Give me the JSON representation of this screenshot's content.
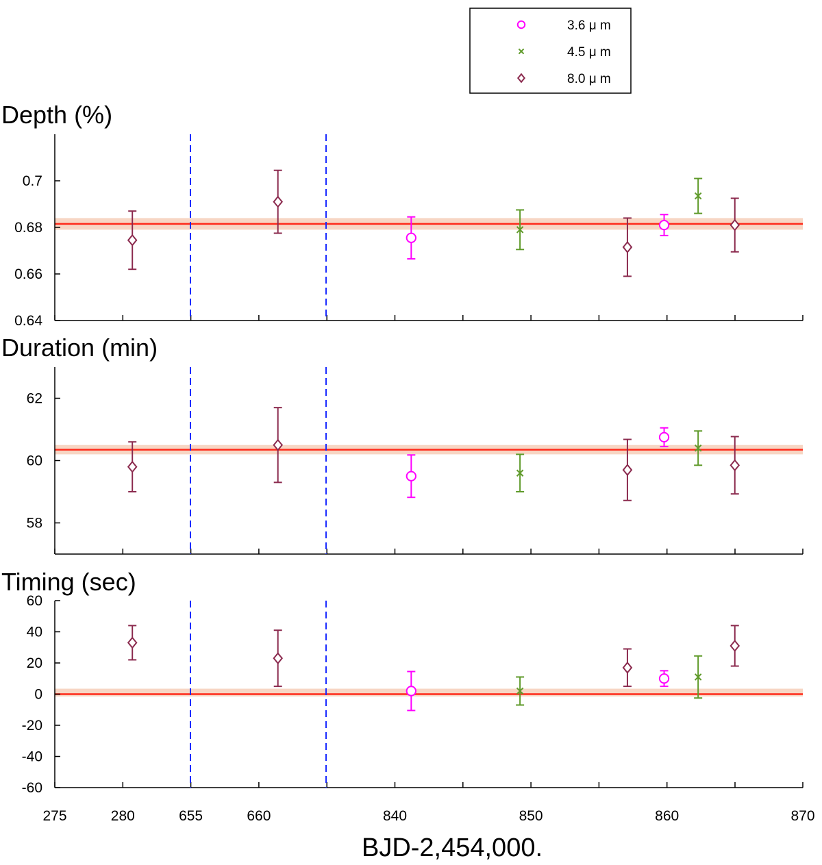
{
  "chart_data": {
    "type": "scatter",
    "xlabel": "BJD-2,454,000.",
    "x_tick_labels": [
      "275",
      "280",
      "655",
      "660",
      "",
      "840",
      "",
      "850",
      "",
      "860",
      "",
      "870"
    ],
    "x_breaks_note_positions": [
      655,
      665
    ],
    "colors": {
      "3.6": "#ff00ff",
      "4.5": "#5f9a2a",
      "8.0": "#8b2a4e",
      "mean_line": "#ff2a1a",
      "mean_band": "#f7d6c4",
      "break_line": "#1a2bff"
    },
    "legend": [
      {
        "series": "3.6",
        "marker": "circle",
        "label": "3.6 μ m"
      },
      {
        "series": "4.5",
        "marker": "x",
        "label": "4.5 μ m"
      },
      {
        "series": "8.0",
        "marker": "diamond",
        "label": "8.0 μ m"
      }
    ],
    "panels": [
      {
        "title": "Depth (%)",
        "ylim": [
          0.64,
          0.72
        ],
        "yticks": [
          0.64,
          0.66,
          0.68,
          0.7
        ],
        "ytick_labels": [
          "0.64",
          "0.66",
          "0.68",
          "0.7"
        ],
        "mean": 0.6815,
        "band": [
          0.679,
          0.684
        ],
        "points": [
          {
            "x_axis": 280.7,
            "series": "8.0",
            "y": 0.6745,
            "err": 0.0125
          },
          {
            "x_axis": 661.4,
            "series": "8.0",
            "y": 0.691,
            "err": 0.0135
          },
          {
            "x_axis": 841.2,
            "series": "3.6",
            "y": 0.6755,
            "err": 0.009
          },
          {
            "x_axis": 849.2,
            "series": "4.5",
            "y": 0.679,
            "err": 0.0085
          },
          {
            "x_axis": 857.1,
            "series": "8.0",
            "y": 0.6715,
            "err": 0.0125
          },
          {
            "x_axis": 859.8,
            "series": "3.6",
            "y": 0.681,
            "err": 0.0045
          },
          {
            "x_axis": 862.3,
            "series": "4.5",
            "y": 0.6935,
            "err": 0.0075
          },
          {
            "x_axis": 865.0,
            "series": "8.0",
            "y": 0.681,
            "err": 0.0115
          }
        ]
      },
      {
        "title": "Duration (min)",
        "ylim": [
          57,
          63
        ],
        "yticks": [
          58,
          60,
          62
        ],
        "ytick_labels": [
          "58",
          "60",
          "62"
        ],
        "mean": 60.35,
        "band": [
          60.2,
          60.5
        ],
        "points": [
          {
            "x_axis": 280.7,
            "series": "8.0",
            "y": 59.8,
            "err": 0.8
          },
          {
            "x_axis": 661.4,
            "series": "8.0",
            "y": 60.5,
            "err": 1.2
          },
          {
            "x_axis": 841.2,
            "series": "3.6",
            "y": 59.5,
            "err": 0.68
          },
          {
            "x_axis": 849.2,
            "series": "4.5",
            "y": 59.6,
            "err": 0.6
          },
          {
            "x_axis": 857.1,
            "series": "8.0",
            "y": 59.7,
            "err": 0.98
          },
          {
            "x_axis": 859.8,
            "series": "3.6",
            "y": 60.75,
            "err": 0.3
          },
          {
            "x_axis": 862.3,
            "series": "4.5",
            "y": 60.4,
            "err": 0.55
          },
          {
            "x_axis": 865.0,
            "series": "8.0",
            "y": 59.85,
            "err": 0.92
          }
        ]
      },
      {
        "title": "Timing (sec)",
        "ylim": [
          -60,
          60
        ],
        "yticks": [
          -60,
          -40,
          -20,
          0,
          20,
          40,
          60
        ],
        "ytick_labels": [
          "-60",
          "-40",
          "-20",
          "0",
          "20",
          "40",
          "60"
        ],
        "mean": 0,
        "band": [
          -1.5,
          3.5
        ],
        "points": [
          {
            "x_axis": 280.7,
            "series": "8.0",
            "y": 33,
            "err": 11
          },
          {
            "x_axis": 661.4,
            "series": "8.0",
            "y": 23,
            "err": 18
          },
          {
            "x_axis": 841.2,
            "series": "3.6",
            "y": 2,
            "err": 12.5
          },
          {
            "x_axis": 849.2,
            "series": "4.5",
            "y": 2,
            "err": 9
          },
          {
            "x_axis": 857.1,
            "series": "8.0",
            "y": 17,
            "err": 12
          },
          {
            "x_axis": 859.8,
            "series": "3.6",
            "y": 10,
            "err": 5
          },
          {
            "x_axis": 862.3,
            "series": "4.5",
            "y": 11,
            "err": 13.5
          },
          {
            "x_axis": 865.0,
            "series": "8.0",
            "y": 31,
            "err": 13
          }
        ]
      }
    ]
  }
}
